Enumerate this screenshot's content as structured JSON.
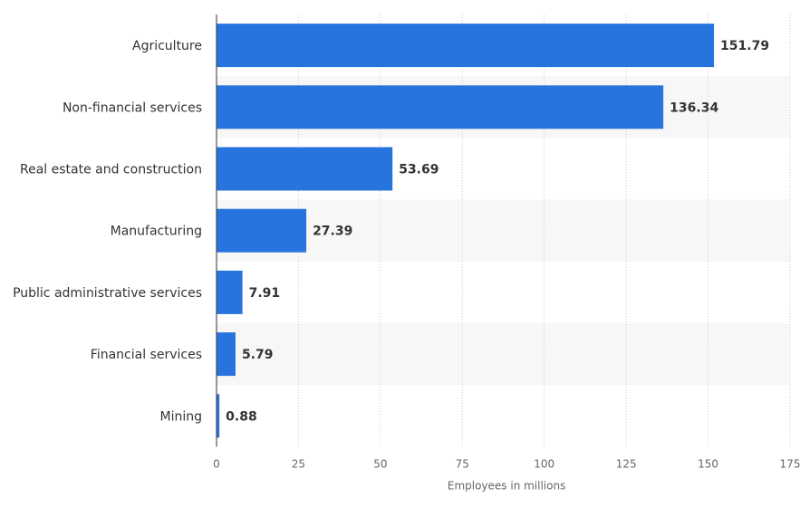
{
  "chart_data": {
    "type": "bar",
    "orientation": "horizontal",
    "categories": [
      "Agriculture",
      "Non-financial services",
      "Real estate and construction",
      "Manufacturing",
      "Public administrative services",
      "Financial services",
      "Mining"
    ],
    "values": [
      151.79,
      136.34,
      53.69,
      27.39,
      7.91,
      5.79,
      0.88
    ],
    "value_labels": [
      "151.79",
      "136.34",
      "53.69",
      "27.39",
      "7.91",
      "5.79",
      "0.88"
    ],
    "xlabel": "Employees in millions",
    "xlim": [
      0,
      175
    ],
    "xticks": [
      0,
      25,
      50,
      75,
      100,
      125,
      150,
      175
    ],
    "grid": "vertical dotted",
    "bar_color": "#2874de",
    "band_color": "#f7f7f7"
  }
}
